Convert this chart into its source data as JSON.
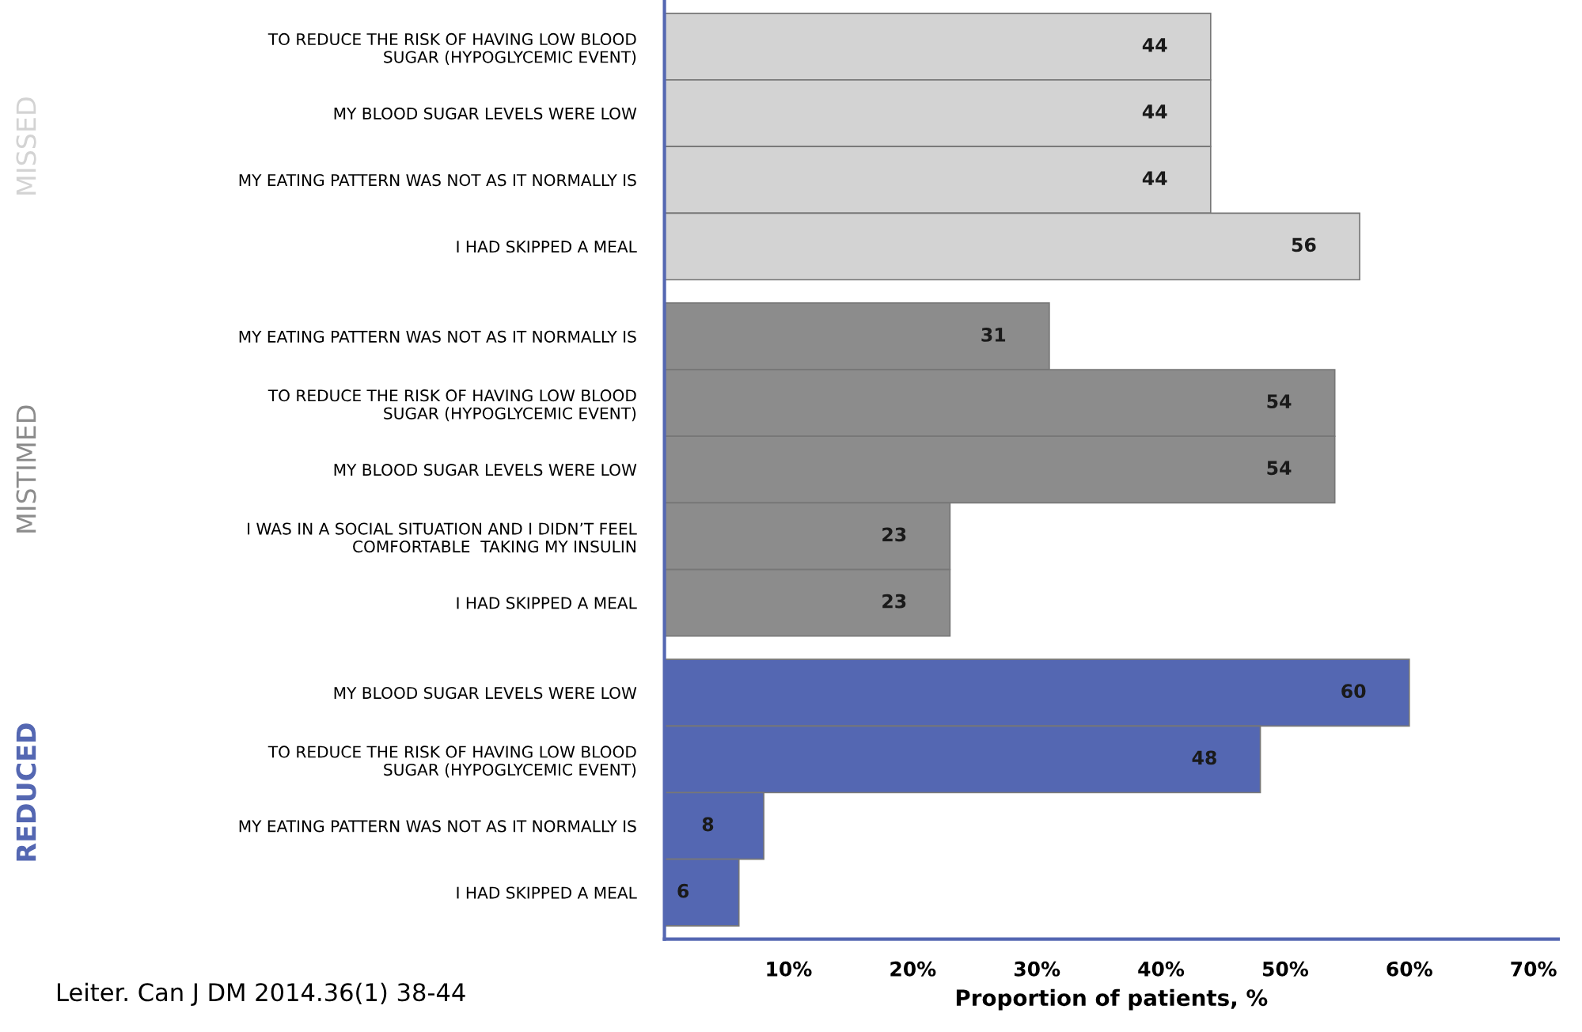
{
  "chart_data": {
    "type": "bar",
    "orientation": "horizontal",
    "xlabel": "Proportion of patients, %",
    "categories": [
      "TO REDUCE THE RISK OF HAVING LOW BLOOD\nSUGAR (HYPOGLYCEMIC EVENT)",
      "MY BLOOD SUGAR LEVELS WERE LOW",
      "MY EATING PATTERN WAS NOT AS IT NORMALLY IS",
      "I HAD SKIPPED A MEAL",
      "MY EATING PATTERN WAS NOT AS IT NORMALLY IS",
      "TO REDUCE THE RISK OF HAVING LOW BLOOD\nSUGAR (HYPOGLYCEMIC EVENT)",
      "MY BLOOD SUGAR LEVELS WERE LOW",
      "I WAS IN A SOCIAL SITUATION AND I DIDN’T FEEL\nCOMFORTABLE  TAKING MY INSULIN",
      "I HAD SKIPPED A MEAL",
      "MY BLOOD SUGAR LEVELS WERE LOW",
      "TO REDUCE THE RISK OF HAVING LOW BLOOD\nSUGAR (HYPOGLYCEMIC EVENT)",
      "MY EATING PATTERN WAS NOT AS IT NORMALLY IS",
      "I HAD SKIPPED A MEAL"
    ],
    "series": [
      {
        "name": "MISSED",
        "color": "#d3d3d3",
        "values": [
          44,
          44,
          44,
          56,
          null,
          null,
          null,
          null,
          null,
          null,
          null,
          null,
          null
        ]
      },
      {
        "name": "MISTIMED",
        "color": "#8c8c8c",
        "values": [
          null,
          null,
          null,
          null,
          31,
          54,
          54,
          23,
          23,
          null,
          null,
          null,
          null
        ]
      },
      {
        "name": "REDUCED",
        "color": "#5467b2",
        "values": [
          null,
          null,
          null,
          null,
          null,
          null,
          null,
          null,
          null,
          60,
          48,
          8,
          6
        ]
      }
    ],
    "xlim": [
      0,
      72
    ],
    "xticks": [
      {
        "value": 10,
        "label": "10%"
      },
      {
        "value": 20,
        "label": "20%"
      },
      {
        "value": 30,
        "label": "30%"
      },
      {
        "value": 40,
        "label": "40%"
      },
      {
        "value": 50,
        "label": "50%"
      },
      {
        "value": 60,
        "label": "60%"
      },
      {
        "value": 70,
        "label": "70%"
      }
    ],
    "data_labels": true,
    "legend": false,
    "grid": false,
    "annotations": [
      "Leiter. Can J DM 2014.36(1) 38-44"
    ]
  }
}
